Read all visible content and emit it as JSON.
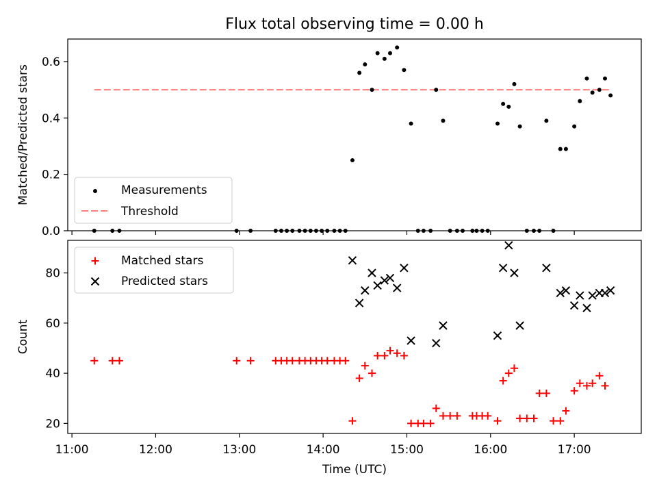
{
  "title": "Flux total observing time = 0.00 h",
  "colors": {
    "measurement": "#000000",
    "threshold": "#ff7f7f",
    "matched": "#ff0000",
    "predicted": "#000000"
  },
  "chart_data": [
    {
      "type": "scatter",
      "panel": "top",
      "title": "Flux total observing time = 0.00 h",
      "xlabel": "",
      "ylabel": "Matched/Predicted stars",
      "ylim": [
        0,
        0.68
      ],
      "yticks": [
        "0.0",
        "0.2",
        "0.4",
        "0.6"
      ],
      "legend": "lower-left",
      "series": [
        {
          "name": "Measurements",
          "marker": "dot",
          "points": [
            [
              "11:16",
              0
            ],
            [
              "11:29",
              0
            ],
            [
              "11:34",
              0
            ],
            [
              "12:58",
              0
            ],
            [
              "13:08",
              0
            ],
            [
              "13:26",
              0
            ],
            [
              "13:30",
              0
            ],
            [
              "13:34",
              0
            ],
            [
              "13:38",
              0
            ],
            [
              "13:43",
              0
            ],
            [
              "13:47",
              0
            ],
            [
              "13:51",
              0
            ],
            [
              "13:55",
              0
            ],
            [
              "13:59",
              0
            ],
            [
              "14:03",
              0
            ],
            [
              "14:08",
              0
            ],
            [
              "14:12",
              0
            ],
            [
              "14:16",
              0
            ],
            [
              "14:21",
              0.25
            ],
            [
              "14:26",
              0.56
            ],
            [
              "14:30",
              0.59
            ],
            [
              "14:35",
              0.5
            ],
            [
              "14:39",
              0.63
            ],
            [
              "14:44",
              0.61
            ],
            [
              "14:48",
              0.63
            ],
            [
              "14:53",
              0.65
            ],
            [
              "14:58",
              0.57
            ],
            [
              "15:03",
              0.38
            ],
            [
              "15:08",
              0
            ],
            [
              "15:12",
              0
            ],
            [
              "15:17",
              0
            ],
            [
              "15:21",
              0.5
            ],
            [
              "15:26",
              0.39
            ],
            [
              "15:31",
              0
            ],
            [
              "15:36",
              0
            ],
            [
              "15:40",
              0
            ],
            [
              "15:47",
              0
            ],
            [
              "15:50",
              0
            ],
            [
              "15:54",
              0
            ],
            [
              "15:58",
              0
            ],
            [
              "16:05",
              0.38
            ],
            [
              "16:09",
              0.45
            ],
            [
              "16:13",
              0.44
            ],
            [
              "16:17",
              0.52
            ],
            [
              "16:21",
              0.37
            ],
            [
              "16:26",
              0
            ],
            [
              "16:31",
              0
            ],
            [
              "16:35",
              0
            ],
            [
              "16:40",
              0.39
            ],
            [
              "16:45",
              0
            ],
            [
              "16:50",
              0.29
            ],
            [
              "16:54",
              0.29
            ],
            [
              "17:00",
              0.37
            ],
            [
              "17:04",
              0.46
            ],
            [
              "17:09",
              0.54
            ],
            [
              "17:13",
              0.49
            ],
            [
              "17:18",
              0.5
            ],
            [
              "17:22",
              0.54
            ],
            [
              "17:26",
              0.48
            ]
          ]
        },
        {
          "name": "Threshold",
          "style": "dashed",
          "points": [
            [
              "11:16",
              0.5
            ],
            [
              "17:26",
              0.5
            ]
          ]
        }
      ]
    },
    {
      "type": "scatter",
      "panel": "bottom",
      "xlabel": "Time (UTC)",
      "ylabel": "Count",
      "ylim": [
        16,
        93
      ],
      "yticks": [
        "20",
        "40",
        "60",
        "80"
      ],
      "xlim": [
        "10:57",
        "17:48"
      ],
      "xticks": [
        "11:00",
        "12:00",
        "13:00",
        "14:00",
        "15:00",
        "16:00",
        "17:00"
      ],
      "legend": "upper-left",
      "series": [
        {
          "name": "Matched stars",
          "marker": "plus",
          "points": [
            [
              "11:16",
              45
            ],
            [
              "11:29",
              45
            ],
            [
              "11:34",
              45
            ],
            [
              "12:58",
              45
            ],
            [
              "13:08",
              45
            ],
            [
              "13:26",
              45
            ],
            [
              "13:30",
              45
            ],
            [
              "13:34",
              45
            ],
            [
              "13:38",
              45
            ],
            [
              "13:43",
              45
            ],
            [
              "13:47",
              45
            ],
            [
              "13:51",
              45
            ],
            [
              "13:55",
              45
            ],
            [
              "13:59",
              45
            ],
            [
              "14:03",
              45
            ],
            [
              "14:08",
              45
            ],
            [
              "14:12",
              45
            ],
            [
              "14:16",
              45
            ],
            [
              "14:21",
              21
            ],
            [
              "14:26",
              38
            ],
            [
              "14:30",
              43
            ],
            [
              "14:35",
              40
            ],
            [
              "14:39",
              47
            ],
            [
              "14:44",
              47
            ],
            [
              "14:48",
              49
            ],
            [
              "14:53",
              48
            ],
            [
              "14:58",
              47
            ],
            [
              "15:03",
              20
            ],
            [
              "15:08",
              20
            ],
            [
              "15:12",
              20
            ],
            [
              "15:17",
              20
            ],
            [
              "15:21",
              26
            ],
            [
              "15:26",
              23
            ],
            [
              "15:31",
              23
            ],
            [
              "15:36",
              23
            ],
            [
              "15:47",
              23
            ],
            [
              "15:50",
              23
            ],
            [
              "15:54",
              23
            ],
            [
              "15:58",
              23
            ],
            [
              "16:05",
              21
            ],
            [
              "16:09",
              37
            ],
            [
              "16:13",
              40
            ],
            [
              "16:17",
              42
            ],
            [
              "16:21",
              22
            ],
            [
              "16:26",
              22
            ],
            [
              "16:31",
              22
            ],
            [
              "16:35",
              32
            ],
            [
              "16:40",
              32
            ],
            [
              "16:45",
              21
            ],
            [
              "16:50",
              21
            ],
            [
              "16:54",
              25
            ],
            [
              "17:00",
              33
            ],
            [
              "17:04",
              36
            ],
            [
              "17:09",
              35
            ],
            [
              "17:13",
              36
            ],
            [
              "17:18",
              39
            ],
            [
              "17:22",
              35
            ]
          ]
        },
        {
          "name": "Predicted stars",
          "marker": "x",
          "points": [
            [
              "14:21",
              85
            ],
            [
              "14:26",
              68
            ],
            [
              "14:30",
              73
            ],
            [
              "14:35",
              80
            ],
            [
              "14:39",
              75
            ],
            [
              "14:44",
              77
            ],
            [
              "14:48",
              78
            ],
            [
              "14:53",
              74
            ],
            [
              "14:58",
              82
            ],
            [
              "15:03",
              53
            ],
            [
              "15:21",
              52
            ],
            [
              "15:26",
              59
            ],
            [
              "16:05",
              55
            ],
            [
              "16:09",
              82
            ],
            [
              "16:13",
              91
            ],
            [
              "16:17",
              80
            ],
            [
              "16:21",
              59
            ],
            [
              "16:40",
              82
            ],
            [
              "16:50",
              72
            ],
            [
              "16:54",
              73
            ],
            [
              "17:00",
              67
            ],
            [
              "17:04",
              71
            ],
            [
              "17:09",
              66
            ],
            [
              "17:13",
              71
            ],
            [
              "17:18",
              72
            ],
            [
              "17:22",
              72
            ],
            [
              "17:26",
              73
            ]
          ]
        }
      ]
    }
  ]
}
